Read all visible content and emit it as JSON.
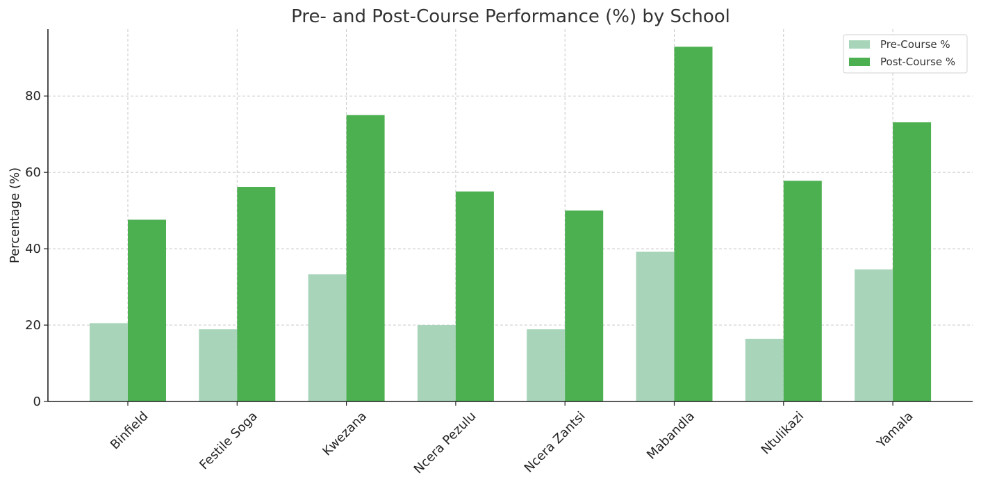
{
  "chart_data": {
    "type": "bar",
    "title": "Pre- and Post-Course Performance (%) by School",
    "xlabel": "",
    "ylabel": "Percentage (%)",
    "categories": [
      "Binfield",
      "Festile Soga",
      "Kwezana",
      "Ncera Pezulu",
      "Ncera Zantsi",
      "Mabandla",
      "Ntulikazi",
      "Yamala"
    ],
    "series": [
      {
        "name": "Pre-Course %",
        "color": "#a8d5ba",
        "values": [
          20.5,
          18.9,
          33.3,
          20.0,
          18.9,
          39.2,
          16.4,
          34.6
        ]
      },
      {
        "name": "Post-Course %",
        "color": "#4caf50",
        "values": [
          47.6,
          56.2,
          75.0,
          55.0,
          50.0,
          92.9,
          57.8,
          73.1
        ]
      }
    ],
    "ylim": [
      0,
      97.5
    ],
    "yticks": [
      "0",
      "20",
      "40",
      "60",
      "80"
    ],
    "grid": true,
    "legend_position": "top-right"
  }
}
